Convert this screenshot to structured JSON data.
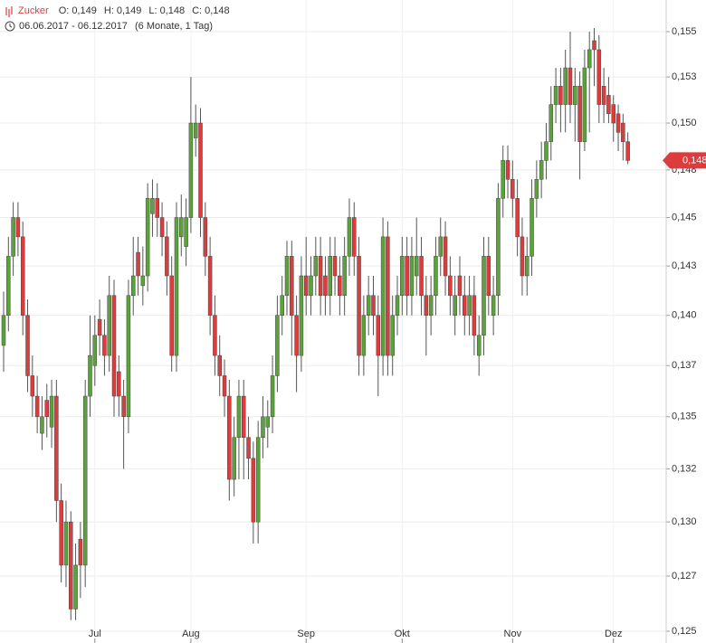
{
  "chart_data": {
    "type": "candlestick",
    "title": "Zucker",
    "ohlc_header": [
      {
        "key": "O:",
        "value": "0,149"
      },
      {
        "key": "H:",
        "value": "0,149"
      },
      {
        "key": "L:",
        "value": "0,148"
      },
      {
        "key": "C:",
        "value": "0,148"
      }
    ],
    "date_range": "06.06.2017 - 06.12.2017",
    "period": "(6 Monate, 1 Tag)",
    "log_scale": true,
    "grid": true,
    "up_color": "#5aa33a",
    "down_color": "#dd3c3c",
    "wick_color": "#555555",
    "ylim": [
      0.125,
      0.155
    ],
    "yticks": [
      {
        "value": 0.155,
        "label": "0,155"
      },
      {
        "value": 0.1525,
        "label": "0,153"
      },
      {
        "value": 0.15,
        "label": "0,150"
      },
      {
        "value": 0.1475,
        "label": "0,148"
      },
      {
        "value": 0.145,
        "label": "0,145"
      },
      {
        "value": 0.1425,
        "label": "0,143"
      },
      {
        "value": 0.14,
        "label": "0,140"
      },
      {
        "value": 0.1375,
        "label": "0,137"
      },
      {
        "value": 0.135,
        "label": "0,135"
      },
      {
        "value": 0.1325,
        "label": "0,132"
      },
      {
        "value": 0.13,
        "label": "0,130"
      },
      {
        "value": 0.1275,
        "label": "0,127"
      },
      {
        "value": 0.125,
        "label": "0,125"
      }
    ],
    "last_price": {
      "value": 0.148,
      "label": "0,148"
    },
    "categories": [
      null,
      null,
      null,
      null,
      null,
      null,
      null,
      null,
      null,
      null,
      null,
      null,
      null,
      null,
      null,
      null,
      null,
      null,
      null,
      "Jul",
      null,
      null,
      null,
      null,
      null,
      null,
      null,
      null,
      null,
      null,
      null,
      null,
      null,
      null,
      null,
      null,
      null,
      null,
      null,
      "Aug",
      null,
      null,
      null,
      null,
      null,
      null,
      null,
      null,
      null,
      null,
      null,
      null,
      null,
      null,
      null,
      null,
      null,
      null,
      null,
      null,
      null,
      null,
      null,
      "Sep",
      null,
      null,
      null,
      null,
      null,
      null,
      null,
      null,
      null,
      null,
      null,
      null,
      null,
      null,
      null,
      null,
      null,
      null,
      null,
      "Okt",
      null,
      null,
      null,
      null,
      null,
      null,
      null,
      null,
      null,
      null,
      null,
      null,
      null,
      null,
      null,
      null,
      null,
      null,
      null,
      null,
      null,
      null,
      "Nov",
      null,
      null,
      null,
      null,
      null,
      null,
      null,
      null,
      null,
      null,
      null,
      null,
      null,
      null,
      null,
      null,
      null,
      null,
      null,
      null,
      "Dez",
      null,
      null,
      null
    ],
    "open": [
      0.1385,
      0.14,
      0.143,
      0.145,
      0.144,
      0.14,
      0.137,
      0.136,
      0.1342,
      0.1358,
      0.1345,
      0.136,
      0.131,
      0.128,
      0.13,
      0.126,
      0.1292,
      0.128,
      0.136,
      0.1375,
      0.1398,
      0.139,
      0.138,
      0.141,
      0.1372,
      0.136,
      0.135,
      0.141,
      0.1432,
      0.1415,
      0.142,
      0.1452,
      0.146,
      0.145,
      0.144,
      0.142,
      0.138,
      0.144,
      0.1435,
      0.145,
      0.1492,
      0.15,
      0.145,
      0.143,
      0.14,
      0.138,
      0.137,
      0.136,
      0.132,
      0.134,
      0.136,
      0.134,
      0.133,
      0.13,
      0.134,
      0.1345,
      0.135,
      0.137,
      0.14,
      0.141,
      0.143,
      0.14,
      0.138,
      0.142,
      0.141,
      0.142,
      0.143,
      0.142,
      0.141,
      0.143,
      0.142,
      0.141,
      0.143,
      0.145,
      0.143,
      0.138,
      0.14,
      0.141,
      0.14,
      0.138,
      0.144,
      0.138,
      0.14,
      0.141,
      0.143,
      0.141,
      0.142,
      0.143,
      0.141,
      0.14,
      0.141,
      0.143,
      0.144,
      0.142,
      0.14,
      0.142,
      0.141,
      0.14,
      0.141,
      0.138,
      0.139,
      0.143,
      0.14,
      0.141,
      0.146,
      0.148,
      0.147,
      0.146,
      0.144,
      0.142,
      0.143,
      0.146,
      0.147,
      0.148,
      0.149,
      0.151,
      0.152,
      0.151,
      0.153,
      0.151,
      0.152,
      0.149,
      0.153,
      0.1545,
      0.154,
      0.152,
      0.1515,
      0.151,
      0.1505,
      0.15,
      0.149
    ],
    "high": [
      0.1412,
      0.144,
      0.1458,
      0.1458,
      0.1448,
      0.1408,
      0.138,
      0.137,
      0.136,
      0.1366,
      0.1368,
      0.1368,
      0.1318,
      0.131,
      0.1305,
      0.129,
      0.13,
      0.1368,
      0.14,
      0.14,
      0.1408,
      0.1398,
      0.142,
      0.1418,
      0.138,
      0.1368,
      0.1418,
      0.144,
      0.144,
      0.1435,
      0.1468,
      0.147,
      0.1468,
      0.1458,
      0.1448,
      0.143,
      0.1458,
      0.1462,
      0.146,
      0.1525,
      0.151,
      0.1508,
      0.1458,
      0.144,
      0.141,
      0.139,
      0.1378,
      0.1368,
      0.135,
      0.1368,
      0.1368,
      0.135,
      0.1338,
      0.1348,
      0.136,
      0.1358,
      0.138,
      0.141,
      0.142,
      0.1438,
      0.1438,
      0.141,
      0.143,
      0.144,
      0.143,
      0.144,
      0.144,
      0.143,
      0.144,
      0.144,
      0.143,
      0.144,
      0.146,
      0.1458,
      0.144,
      0.141,
      0.142,
      0.142,
      0.141,
      0.145,
      0.1448,
      0.141,
      0.142,
      0.144,
      0.144,
      0.144,
      0.145,
      0.144,
      0.142,
      0.142,
      0.144,
      0.145,
      0.1448,
      0.143,
      0.142,
      0.143,
      0.142,
      0.142,
      0.142,
      0.14,
      0.144,
      0.144,
      0.142,
      0.1468,
      0.1488,
      0.1488,
      0.148,
      0.147,
      0.145,
      0.144,
      0.147,
      0.148,
      0.149,
      0.15,
      0.152,
      0.153,
      0.153,
      0.154,
      0.155,
      0.153,
      0.1528,
      0.154,
      0.155,
      0.1552,
      0.1548,
      0.153,
      0.1525,
      0.1515,
      0.151,
      0.1505,
      0.1495
    ],
    "low": [
      0.1372,
      0.1392,
      0.142,
      0.143,
      0.139,
      0.1362,
      0.135,
      0.1342,
      0.1334,
      0.134,
      0.1335,
      0.13,
      0.1272,
      0.127,
      0.1255,
      0.1255,
      0.1265,
      0.127,
      0.135,
      0.1365,
      0.138,
      0.137,
      0.1372,
      0.135,
      0.135,
      0.1325,
      0.1342,
      0.14,
      0.141,
      0.1405,
      0.1412,
      0.144,
      0.144,
      0.143,
      0.141,
      0.1372,
      0.1372,
      0.143,
      0.1425,
      0.1442,
      0.1482,
      0.144,
      0.142,
      0.139,
      0.137,
      0.136,
      0.135,
      0.131,
      0.1312,
      0.132,
      0.132,
      0.132,
      0.129,
      0.129,
      0.133,
      0.1335,
      0.1342,
      0.1362,
      0.139,
      0.14,
      0.138,
      0.1362,
      0.1372,
      0.14,
      0.14,
      0.141,
      0.14,
      0.14,
      0.14,
      0.141,
      0.14,
      0.14,
      0.142,
      0.142,
      0.137,
      0.137,
      0.139,
      0.139,
      0.136,
      0.137,
      0.137,
      0.137,
      0.139,
      0.14,
      0.14,
      0.14,
      0.141,
      0.14,
      0.138,
      0.139,
      0.14,
      0.142,
      0.141,
      0.14,
      0.139,
      0.14,
      0.139,
      0.139,
      0.138,
      0.137,
      0.138,
      0.14,
      0.139,
      0.14,
      0.145,
      0.146,
      0.145,
      0.143,
      0.141,
      0.141,
      0.142,
      0.145,
      0.146,
      0.147,
      0.148,
      0.15,
      0.1495,
      0.1495,
      0.15,
      0.149,
      0.147,
      0.1485,
      0.1495,
      0.152,
      0.15,
      0.15,
      0.15,
      0.149,
      0.1485,
      0.148,
      0.1478
    ],
    "close": [
      0.14,
      0.143,
      0.145,
      0.144,
      0.14,
      0.137,
      0.136,
      0.135,
      0.135,
      0.135,
      0.136,
      0.131,
      0.128,
      0.13,
      0.126,
      0.128,
      0.128,
      0.136,
      0.138,
      0.139,
      0.139,
      0.138,
      0.141,
      0.136,
      0.136,
      0.135,
      0.141,
      0.142,
      0.142,
      0.142,
      0.146,
      0.146,
      0.145,
      0.144,
      0.142,
      0.138,
      0.145,
      0.145,
      0.145,
      0.15,
      0.15,
      0.145,
      0.143,
      0.14,
      0.138,
      0.137,
      0.136,
      0.132,
      0.134,
      0.136,
      0.134,
      0.133,
      0.13,
      0.134,
      0.135,
      0.135,
      0.137,
      0.14,
      0.141,
      0.143,
      0.14,
      0.138,
      0.142,
      0.141,
      0.142,
      0.143,
      0.141,
      0.141,
      0.143,
      0.142,
      0.141,
      0.143,
      0.145,
      0.143,
      0.138,
      0.14,
      0.141,
      0.14,
      0.138,
      0.144,
      0.138,
      0.14,
      0.141,
      0.143,
      0.141,
      0.143,
      0.143,
      0.141,
      0.14,
      0.141,
      0.143,
      0.144,
      0.142,
      0.141,
      0.141,
      0.141,
      0.14,
      0.141,
      0.139,
      0.139,
      0.143,
      0.141,
      0.141,
      0.146,
      0.148,
      0.147,
      0.146,
      0.144,
      0.142,
      0.143,
      0.146,
      0.147,
      0.148,
      0.149,
      0.151,
      0.152,
      0.151,
      0.153,
      0.151,
      0.152,
      0.149,
      0.153,
      0.154,
      0.154,
      0.151,
      0.151,
      0.1505,
      0.15,
      0.1495,
      0.149,
      0.148
    ]
  }
}
